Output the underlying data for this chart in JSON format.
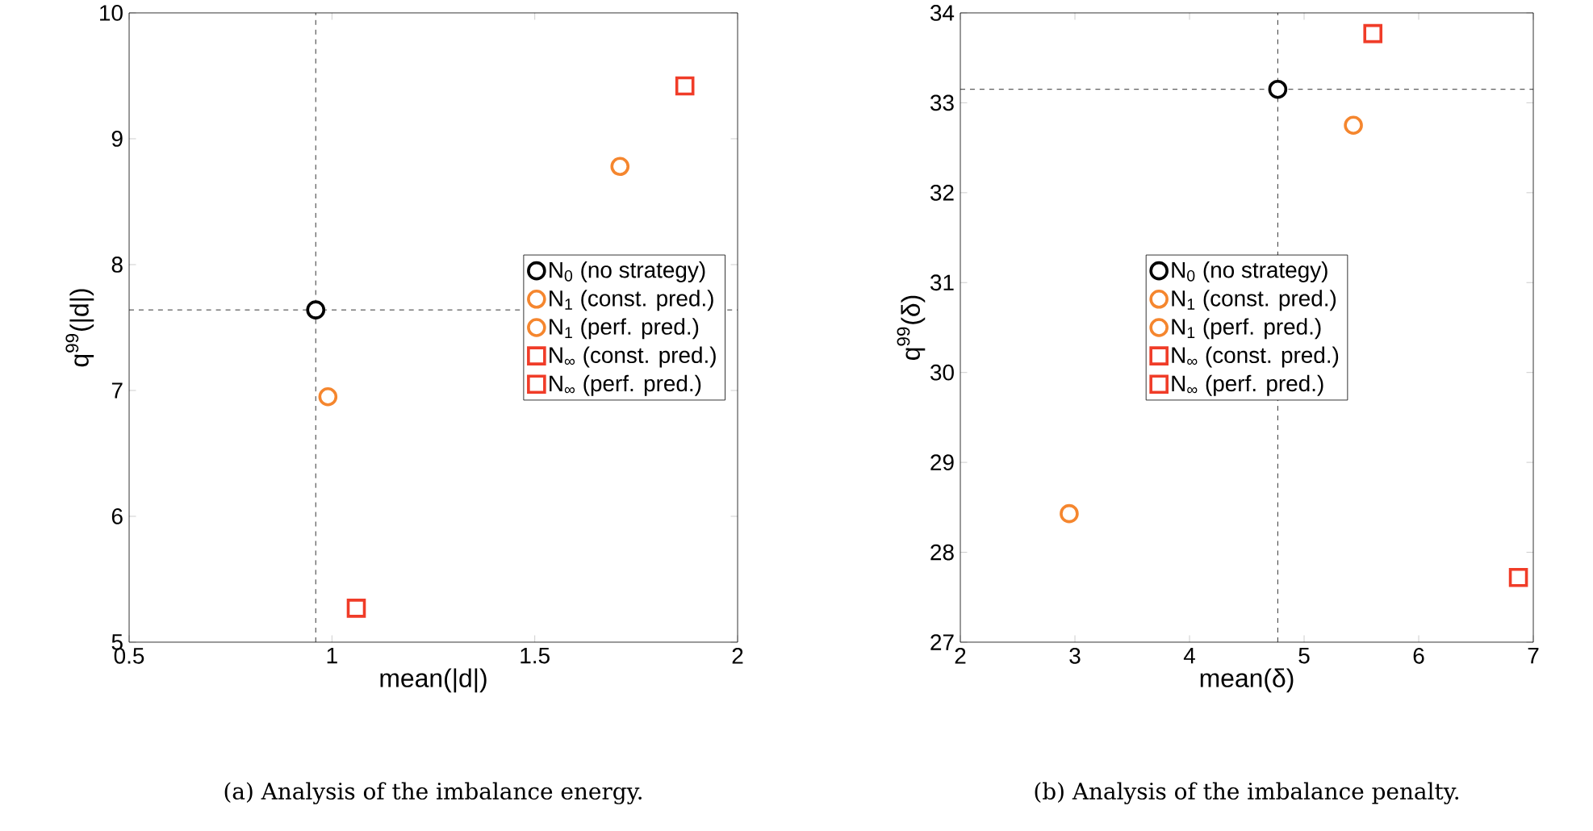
{
  "chart_data": [
    {
      "type": "scatter",
      "xlabel": "mean(|d|)",
      "ylabel": "q$^{99}$(|d|)",
      "xlim": [
        0.5,
        2
      ],
      "ylim": [
        5,
        10
      ],
      "xticks": [
        0.5,
        1,
        1.5,
        2
      ],
      "yticks": [
        5,
        6,
        7,
        8,
        9,
        10
      ],
      "grid": false,
      "legend": "right",
      "ref_lines": [
        {
          "axis": "x",
          "value": 0.96,
          "color": "#000000",
          "line_style": "dashed"
        },
        {
          "axis": "y",
          "value": 7.64,
          "color": "#000000",
          "line_style": "dashed"
        }
      ],
      "series": [
        {
          "name": "N$_{0}$ (no strategy)",
          "color": "#000000",
          "marker": "circle",
          "x": [
            0.96
          ],
          "values": [
            7.64
          ]
        },
        {
          "name": "N$_{1}$ (const. pred.)",
          "color": "#f5862e",
          "marker": "circle",
          "x": [
            0.99
          ],
          "values": [
            6.95
          ]
        },
        {
          "name": "N$_{1}$ (perf. pred.)",
          "color": "#f5862e",
          "marker": "circle",
          "x": [
            1.71
          ],
          "values": [
            8.78
          ]
        },
        {
          "name": "N$_{∞}$ (const. pred.)",
          "color": "#f03c28",
          "marker": "square",
          "x": [
            1.06
          ],
          "values": [
            5.27
          ]
        },
        {
          "name": "N$_{∞}$ (perf. pred.)",
          "color": "#f03c28",
          "marker": "square",
          "x": [
            1.87
          ],
          "values": [
            9.42
          ]
        }
      ],
      "annotations": [
        "(a) Analysis of the imbalance energy."
      ]
    },
    {
      "type": "scatter",
      "xlabel": "mean(δ)",
      "ylabel": "q$^{99}$(δ)",
      "xlim": [
        2,
        7
      ],
      "ylim": [
        27,
        34
      ],
      "xticks": [
        2,
        3,
        4,
        5,
        6,
        7
      ],
      "yticks": [
        27,
        28,
        29,
        30,
        31,
        32,
        33,
        34
      ],
      "grid": false,
      "legend": "center",
      "ref_lines": [
        {
          "axis": "x",
          "value": 4.77,
          "color": "#000000",
          "line_style": "dashed"
        },
        {
          "axis": "y",
          "value": 33.15,
          "color": "#000000",
          "line_style": "dashed"
        }
      ],
      "series": [
        {
          "name": "N$_{0}$ (no strategy)",
          "color": "#000000",
          "marker": "circle",
          "x": [
            4.77
          ],
          "values": [
            33.15
          ]
        },
        {
          "name": "N$_{1}$ (const. pred.)",
          "color": "#f5862e",
          "marker": "circle",
          "x": [
            5.43
          ],
          "values": [
            32.75
          ]
        },
        {
          "name": "N$_{1}$ (perf. pred.)",
          "color": "#f5862e",
          "marker": "circle",
          "x": [
            2.95
          ],
          "values": [
            28.43
          ]
        },
        {
          "name": "N$_{∞}$ (const. pred.)",
          "color": "#f03c28",
          "marker": "square",
          "x": [
            5.6
          ],
          "values": [
            33.77
          ]
        },
        {
          "name": "N$_{∞}$ (perf. pred.)",
          "color": "#f03c28",
          "marker": "square",
          "x": [
            6.87
          ],
          "values": [
            27.72
          ]
        }
      ],
      "annotations": [
        "(b) Analysis of the imbalance penalty."
      ]
    }
  ]
}
